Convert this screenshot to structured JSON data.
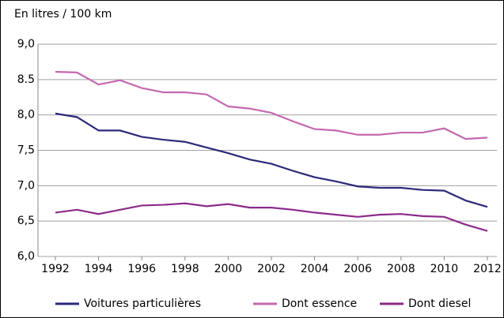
{
  "chart_data": {
    "type": "line",
    "y_label": "En litres / 100 km",
    "x": [
      1992,
      1993,
      1994,
      1995,
      1996,
      1997,
      1998,
      1999,
      2000,
      2001,
      2002,
      2003,
      2004,
      2005,
      2006,
      2007,
      2008,
      2009,
      2010,
      2011,
      2012
    ],
    "series": [
      {
        "name": "Voitures particulières",
        "color": "#2b2a7a",
        "values": [
          8.02,
          7.97,
          7.78,
          7.78,
          7.69,
          7.65,
          7.62,
          7.54,
          7.46,
          7.37,
          7.31,
          7.21,
          7.12,
          7.06,
          6.99,
          6.97,
          6.97,
          6.94,
          6.93,
          6.79,
          6.7
        ]
      },
      {
        "name": "Dont essence",
        "color": "#c469b0",
        "values": [
          8.61,
          8.6,
          8.43,
          8.49,
          8.38,
          8.32,
          8.32,
          8.29,
          8.12,
          8.09,
          8.03,
          7.91,
          7.8,
          7.78,
          7.72,
          7.72,
          7.75,
          7.75,
          7.81,
          7.66,
          7.68
        ]
      },
      {
        "name": "Dont diesel",
        "color": "#8b2a8a",
        "values": [
          6.62,
          6.66,
          6.6,
          6.66,
          6.72,
          6.73,
          6.75,
          6.71,
          6.74,
          6.69,
          6.69,
          6.66,
          6.62,
          6.59,
          6.56,
          6.59,
          6.6,
          6.57,
          6.56,
          6.45,
          6.36
        ]
      }
    ],
    "xlim": [
      1992,
      2012
    ],
    "xticks": [
      1992,
      1994,
      1996,
      1998,
      2000,
      2002,
      2004,
      2006,
      2008,
      2010,
      2012
    ],
    "ylim": [
      6.0,
      9.0
    ],
    "yticks": [
      {
        "value": 6.0,
        "label": "6,0"
      },
      {
        "value": 6.5,
        "label": "6,5"
      },
      {
        "value": 7.0,
        "label": "7,0"
      },
      {
        "value": 7.5,
        "label": "7,5"
      },
      {
        "value": 8.0,
        "label": "8,0"
      },
      8.5,
      {
        "value": 9.0,
        "label": "9,0"
      }
    ],
    "grid": true,
    "legend": "bottom"
  }
}
